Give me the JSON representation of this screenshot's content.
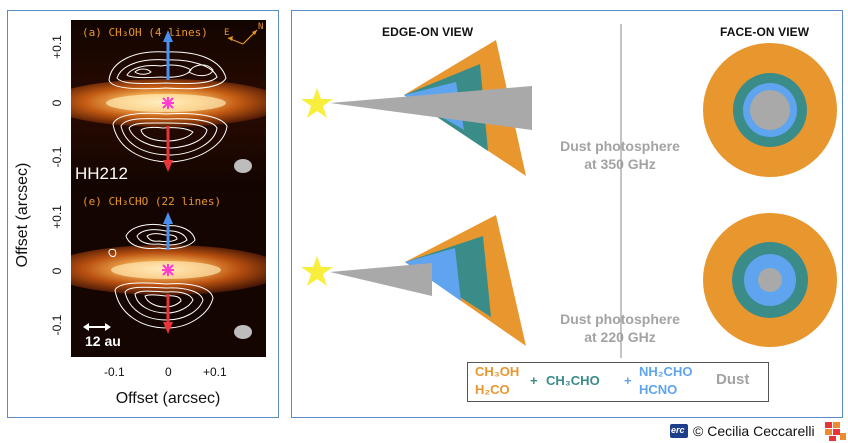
{
  "left_panel": {
    "top_map": {
      "label": "(a) CH₃OH (4 lines)",
      "compass_e": "E",
      "compass_n": "N",
      "source": "HH212"
    },
    "bottom_map": {
      "label": "(e) CH₃CHO (22 lines)",
      "scale_bar": "12 au"
    },
    "y_axis_label": "Offset (arcsec)",
    "x_axis_label": "Offset (arcsec)",
    "y_ticks_top": [
      "+0.1",
      "0",
      "-0.1"
    ],
    "y_ticks_bottom": [
      "+0.1",
      "0",
      "-0.1"
    ],
    "x_ticks": [
      "-0.1",
      "0",
      "+0.1"
    ]
  },
  "right_panel": {
    "edge_on_title": "EDGE-ON VIEW",
    "face_on_title": "FACE-ON VIEW",
    "photosphere_350": {
      "line1": "Dust photosphere",
      "line2": "at 350 GHz"
    },
    "photosphere_220": {
      "line1": "Dust photosphere",
      "line2": "at 220 GHz"
    },
    "legend": {
      "group1": [
        "CH₃OH",
        "H₂CO"
      ],
      "plus1": "+",
      "group2": "CH₃CHO",
      "plus2": "+",
      "group3": [
        "NH₂CHO",
        "HCNO"
      ],
      "group4": "Dust"
    }
  },
  "footer": {
    "erc": "erc",
    "credit": "© Cecilia Ceccarelli"
  },
  "colors": {
    "orange": "#e8962e",
    "teal": "#3a8c89",
    "blue": "#5fa4ee",
    "gray": "#a9a9a9",
    "star": "#f7ef3c",
    "frame": "#5b8bc4"
  }
}
